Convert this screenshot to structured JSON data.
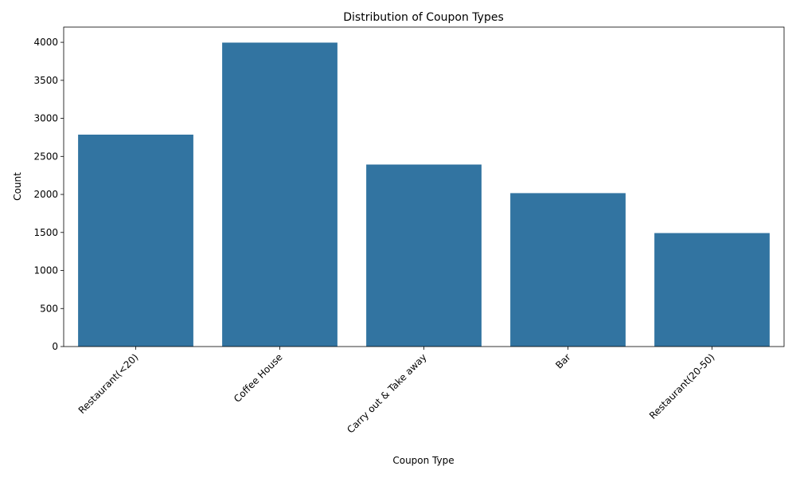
{
  "chart_data": {
    "type": "bar",
    "title": "Distribution of Coupon Types",
    "xlabel": "Coupon Type",
    "ylabel": "Count",
    "categories": [
      "Restaurant(<20)",
      "Coffee House",
      "Carry out & Take away",
      "Bar",
      "Restaurant(20-50)"
    ],
    "values": [
      2786,
      3996,
      2393,
      2017,
      1492
    ],
    "ylim": [
      0,
      4200
    ],
    "yticks": [
      0,
      500,
      1000,
      1500,
      2000,
      2500,
      3000,
      3500,
      4000
    ],
    "bar_color": "#3274a1",
    "grid": false,
    "legend": "none"
  }
}
